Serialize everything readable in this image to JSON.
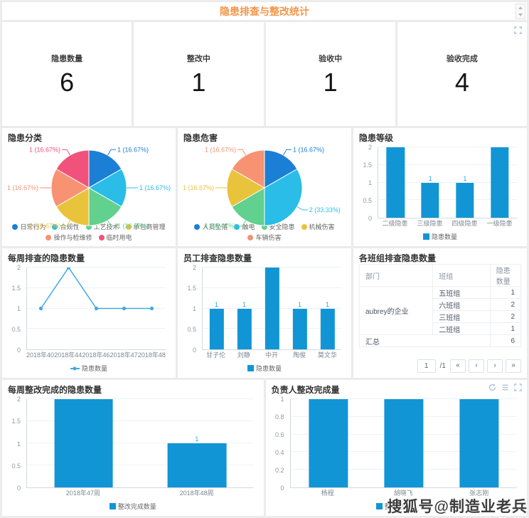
{
  "page": {
    "title": "隐患排查与整改统计",
    "watermark": "搜狐号@制造业老兵"
  },
  "colors": {
    "accent_orange": "#f2964b",
    "bar_blue": "#1295d5",
    "value_label_blue": "#2aa3e8",
    "line_blue": "#41a8e4",
    "pie_palette": [
      "#1b7fd6",
      "#29bde8",
      "#62d08e",
      "#eac33c",
      "#f79273",
      "#f0527c"
    ]
  },
  "icons": [
    "expand-icon",
    "refresh-icon",
    "list-icon",
    "scroll-up-icon",
    "scroll-down-icon"
  ],
  "kpis": [
    {
      "label": "隐患数量",
      "value": "6"
    },
    {
      "label": "整改中",
      "value": "1"
    },
    {
      "label": "验收中",
      "value": "1"
    },
    {
      "label": "验收完成",
      "value": "4"
    }
  ],
  "chart_data": [
    {
      "id": "pie-category",
      "type": "pie",
      "title": "隐患分类",
      "labels": [
        "日常行为",
        "合规性",
        "工艺技术",
        "承包商管理",
        "操作与检维修",
        "临时用电"
      ],
      "values": [
        1,
        1,
        1,
        1,
        1,
        1
      ],
      "percents": [
        "16.67%",
        "16.67%",
        "16.67%",
        "16.67%",
        "16.67%",
        "16.67%"
      ],
      "legend_position": "bottom"
    },
    {
      "id": "pie-hazard",
      "type": "pie",
      "title": "隐患危害",
      "labels": [
        "人员坠落",
        "触电",
        "安全隐患",
        "机械伤害",
        "车辆伤害"
      ],
      "values": [
        1,
        2,
        1,
        1,
        1
      ],
      "percents": [
        "16.67%",
        "33.33%",
        "16.67%",
        "16.67%",
        "16.67%"
      ],
      "legend_position": "bottom"
    },
    {
      "id": "bar-level",
      "type": "bar",
      "title": "隐患等级",
      "categories": [
        "二级隐患",
        "三级隐患",
        "四级隐患",
        "一级隐患"
      ],
      "values": [
        2,
        1,
        1,
        2
      ],
      "yticks": [
        0,
        0.5,
        1,
        1.5,
        2
      ],
      "ylim": [
        0,
        2
      ],
      "legend": "隐患数量",
      "value_labels": [
        null,
        1,
        1,
        null
      ]
    },
    {
      "id": "line-weekly-found",
      "type": "line",
      "title": "每周排查的隐患数量",
      "categories": [
        "2018年40周",
        "2018年44周",
        "2018年46周",
        "2018年47周",
        "2018年48周"
      ],
      "values": [
        1,
        2,
        1,
        1,
        1
      ],
      "yticks": [
        0,
        0.5,
        1,
        1.5,
        2
      ],
      "ylim": [
        0,
        2
      ],
      "legend": "隐患数量"
    },
    {
      "id": "bar-employee",
      "type": "bar",
      "title": "员工排查隐患数量",
      "categories": [
        "甘子伦",
        "刘静",
        "中开",
        "陶俊",
        "莫文华"
      ],
      "values": [
        1,
        1,
        2,
        1,
        1
      ],
      "yticks": [
        0,
        0.5,
        1,
        1.5,
        2
      ],
      "ylim": [
        0,
        2
      ],
      "legend": "隐患数量",
      "value_labels": [
        1,
        1,
        null,
        1,
        1
      ]
    },
    {
      "id": "table-team",
      "type": "table",
      "title": "各班组排查隐患数量",
      "columns": [
        "部门",
        "班组",
        "隐患数量"
      ],
      "department": "aubrey的企业",
      "rows": [
        [
          "五班组",
          1
        ],
        [
          "六班组",
          2
        ],
        [
          "三班组",
          2
        ],
        [
          "二班组",
          1
        ]
      ],
      "total_label": "汇总",
      "total_value": 6,
      "pagination": {
        "page": "1",
        "total": "/1",
        "first": "«",
        "prev": "‹",
        "next": "›",
        "last": "»"
      }
    },
    {
      "id": "bar-weekly-fixed",
      "type": "bar",
      "title": "每周整改完成的隐患数量",
      "categories": [
        "2018年47周",
        "2018年48周"
      ],
      "values": [
        2,
        1
      ],
      "yticks": [
        0,
        0.5,
        1,
        1.5,
        2
      ],
      "ylim": [
        0,
        2
      ],
      "legend": "整改完成数量",
      "value_labels": [
        null,
        1
      ]
    },
    {
      "id": "bar-owner",
      "type": "bar",
      "title": "负责人整改完成量",
      "categories": [
        "杨程",
        "胡晓飞",
        "张志刚"
      ],
      "values": [
        1,
        1,
        1
      ],
      "yticks": [
        0,
        0.2,
        0.4,
        0.6,
        0.8,
        1
      ],
      "ylim": [
        0,
        1
      ],
      "legend": "整改完成量",
      "value_labels": [
        null,
        null,
        null
      ]
    }
  ]
}
